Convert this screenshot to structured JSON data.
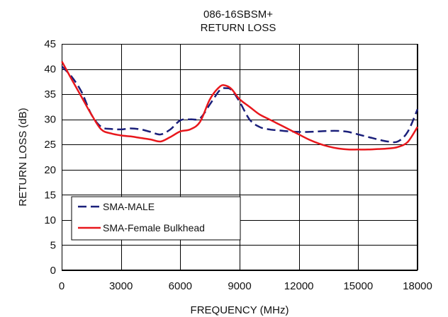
{
  "chart_data": {
    "type": "line",
    "title": "086-16SBSM+",
    "subtitle": "RETURN LOSS",
    "xlabel": "FREQUENCY (MHz)",
    "ylabel": "RETURN LOSS (dB)",
    "xlim": [
      0,
      18000
    ],
    "ylim": [
      0,
      45
    ],
    "xticks": [
      "0",
      "3000",
      "6000",
      "9000",
      "12000",
      "15000",
      "18000"
    ],
    "yticks": [
      "0",
      "5",
      "10",
      "15",
      "20",
      "25",
      "30",
      "35",
      "40",
      "45"
    ],
    "grid": true,
    "legend_position": "bottom-left",
    "series": [
      {
        "name": "SMA-MALE",
        "color": "#1a1f7a",
        "dash": "dashed",
        "x": [
          10,
          500,
          1000,
          1500,
          2000,
          2500,
          3000,
          3500,
          4000,
          4500,
          5000,
          5500,
          6000,
          6500,
          7000,
          7500,
          8000,
          8300,
          8600,
          9000,
          9500,
          10000,
          10500,
          11000,
          11500,
          12000,
          12500,
          13000,
          13500,
          14000,
          14500,
          15000,
          15500,
          16000,
          16500,
          17000,
          17500,
          18000
        ],
        "y": [
          40.5,
          38.5,
          35.5,
          31.0,
          28.5,
          28.1,
          28.0,
          28.2,
          28.0,
          27.5,
          27.0,
          28.0,
          29.8,
          30.0,
          30.2,
          33.0,
          35.8,
          36.2,
          35.8,
          33.5,
          30.0,
          28.5,
          28.0,
          27.8,
          27.6,
          27.5,
          27.5,
          27.6,
          27.7,
          27.7,
          27.5,
          27.0,
          26.5,
          26.0,
          25.6,
          25.6,
          27.5,
          32.0
        ]
      },
      {
        "name": "SMA-Female Bulkhead",
        "color": "#e8171c",
        "dash": "solid",
        "x": [
          10,
          500,
          1000,
          1500,
          2000,
          2500,
          3000,
          3500,
          4000,
          4500,
          5000,
          5500,
          6000,
          6500,
          7000,
          7500,
          8000,
          8300,
          8600,
          9000,
          9500,
          10000,
          10500,
          11000,
          11500,
          12000,
          12500,
          13000,
          13500,
          14000,
          14500,
          15000,
          15500,
          16000,
          16500,
          17000,
          17500,
          18000
        ],
        "y": [
          41.5,
          38.0,
          34.5,
          31.0,
          28.0,
          27.2,
          26.8,
          26.6,
          26.3,
          26.0,
          25.6,
          26.5,
          27.6,
          28.0,
          29.5,
          34.0,
          36.5,
          36.7,
          36.0,
          34.0,
          32.5,
          31.0,
          30.0,
          29.0,
          28.0,
          27.0,
          26.0,
          25.2,
          24.6,
          24.2,
          24.0,
          24.0,
          24.0,
          24.1,
          24.2,
          24.5,
          25.5,
          28.5
        ]
      }
    ]
  }
}
